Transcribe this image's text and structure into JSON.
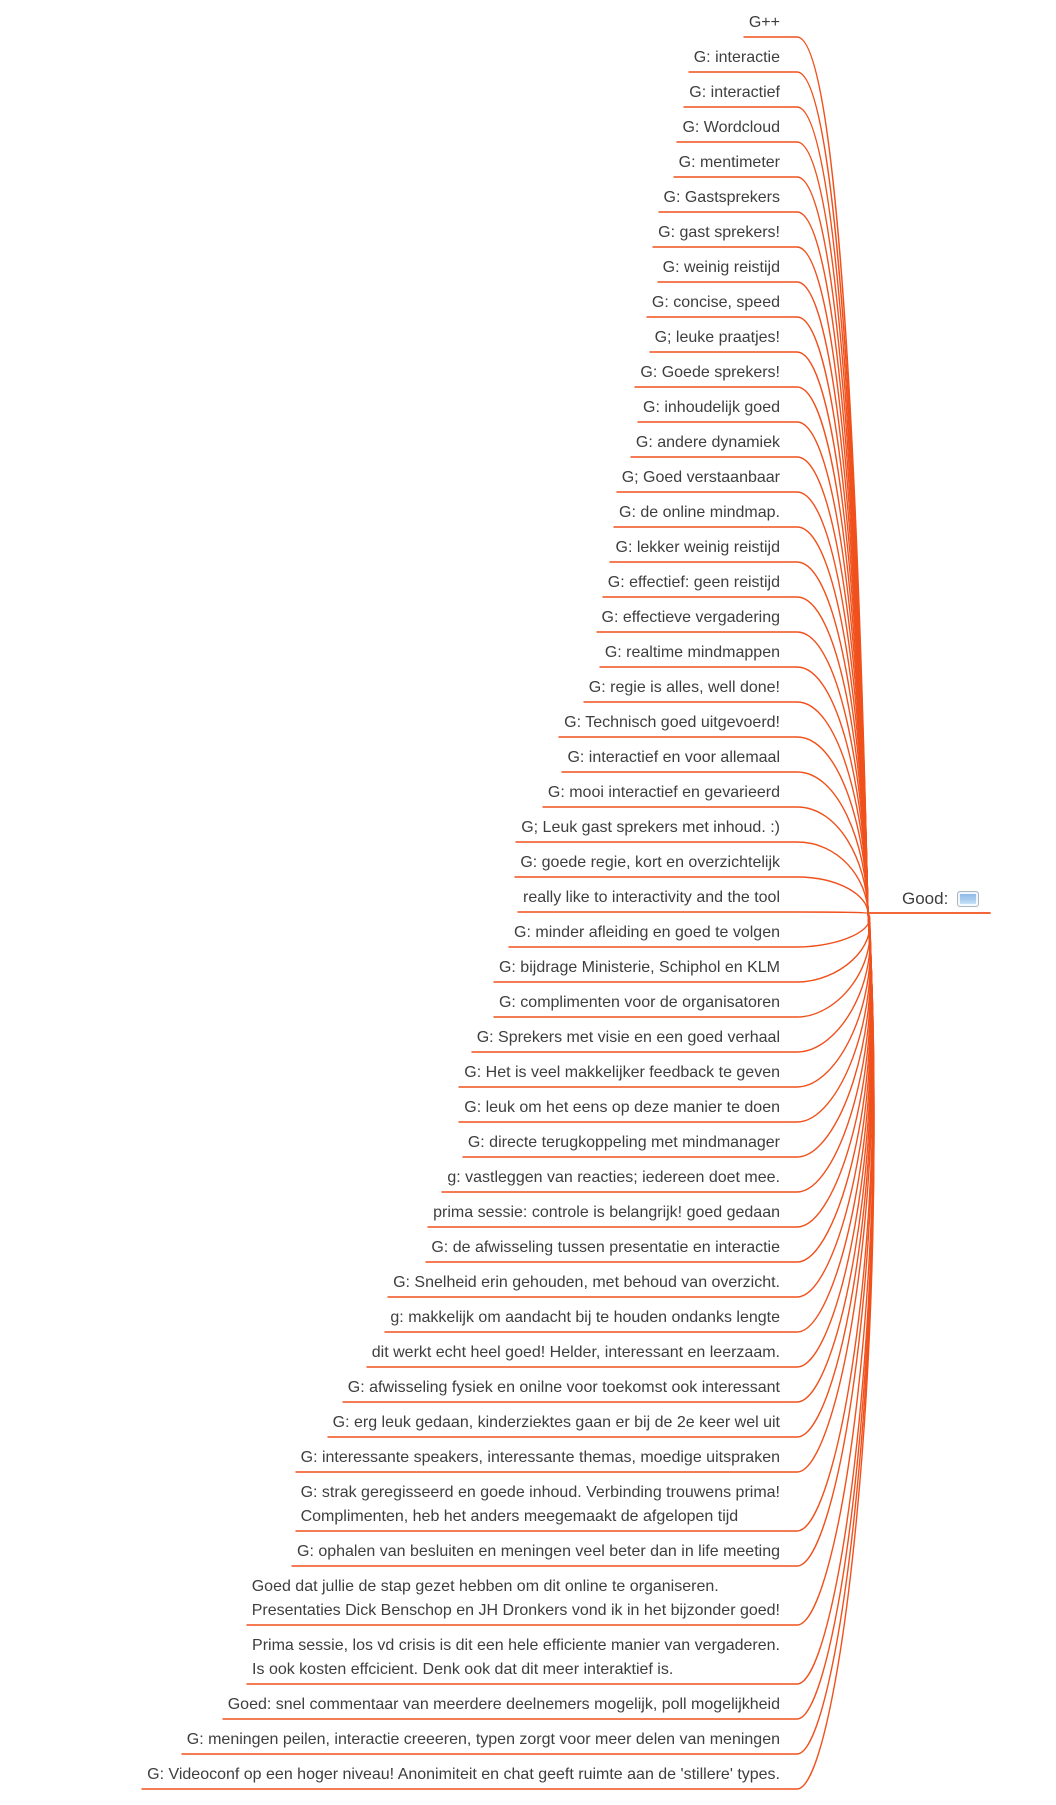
{
  "root": {
    "label": "Good:",
    "icon": "notes-icon"
  },
  "colors": {
    "branch": "#F0511C",
    "text": "#3E3E3E",
    "note_icon_top": "#86b4e3",
    "note_icon_bottom": "#d6ebfa"
  },
  "topics": [
    {
      "lines": [
        "G++"
      ]
    },
    {
      "lines": [
        "G: interactie"
      ]
    },
    {
      "lines": [
        "G: interactief"
      ]
    },
    {
      "lines": [
        "G: Wordcloud"
      ]
    },
    {
      "lines": [
        "G: mentimeter"
      ]
    },
    {
      "lines": [
        "G: Gastsprekers"
      ]
    },
    {
      "lines": [
        "G: gast sprekers!"
      ]
    },
    {
      "lines": [
        "G: weinig reistijd"
      ]
    },
    {
      "lines": [
        "G: concise, speed"
      ]
    },
    {
      "lines": [
        "G; leuke praatjes!"
      ]
    },
    {
      "lines": [
        "G: Goede sprekers!"
      ]
    },
    {
      "lines": [
        "G: inhoudelijk goed"
      ]
    },
    {
      "lines": [
        "G: andere dynamiek"
      ]
    },
    {
      "lines": [
        "G; Goed verstaanbaar"
      ]
    },
    {
      "lines": [
        "G: de online mindmap."
      ]
    },
    {
      "lines": [
        "G: lekker weinig reistijd"
      ]
    },
    {
      "lines": [
        "G: effectief: geen reistijd"
      ]
    },
    {
      "lines": [
        "G: effectieve vergadering"
      ]
    },
    {
      "lines": [
        "G: realtime mindmappen"
      ]
    },
    {
      "lines": [
        "G: regie is alles, well done!"
      ]
    },
    {
      "lines": [
        "G: Technisch goed uitgevoerd!"
      ]
    },
    {
      "lines": [
        "G: interactief en voor allemaal"
      ]
    },
    {
      "lines": [
        "G: mooi interactief en gevarieerd"
      ]
    },
    {
      "lines": [
        "G; Leuk gast sprekers met inhoud. :)"
      ]
    },
    {
      "lines": [
        "G: goede regie, kort en overzichtelijk"
      ]
    },
    {
      "lines": [
        "really like to interactivity and the tool"
      ]
    },
    {
      "lines": [
        "G: minder afleiding en goed te volgen"
      ]
    },
    {
      "lines": [
        "G: bijdrage Ministerie, Schiphol en KLM"
      ]
    },
    {
      "lines": [
        "G: complimenten voor de organisatoren"
      ]
    },
    {
      "lines": [
        "G: Sprekers met visie en een goed verhaal"
      ]
    },
    {
      "lines": [
        "G: Het is veel makkelijker feedback te geven"
      ]
    },
    {
      "lines": [
        "G: leuk om het eens op deze manier te doen"
      ]
    },
    {
      "lines": [
        "G: directe terugkoppeling met mindmanager"
      ]
    },
    {
      "lines": [
        "g: vastleggen van reacties; iedereen doet mee."
      ]
    },
    {
      "lines": [
        "prima sessie: controle is belangrijk! goed gedaan"
      ]
    },
    {
      "lines": [
        "G: de afwisseling tussen presentatie en interactie"
      ]
    },
    {
      "lines": [
        "G: Snelheid erin gehouden, met behoud van overzicht."
      ]
    },
    {
      "lines": [
        "g: makkelijk om aandacht bij te houden ondanks lengte"
      ]
    },
    {
      "lines": [
        "dit werkt echt heel goed! Helder, interessant en leerzaam."
      ]
    },
    {
      "lines": [
        "G: afwisseling fysiek en onilne voor toekomst ook interessant"
      ]
    },
    {
      "lines": [
        "G: erg leuk gedaan, kinderziektes gaan er bij de 2e keer wel uit"
      ]
    },
    {
      "lines": [
        "G: interessante speakers, interessante themas, moedige uitspraken"
      ]
    },
    {
      "lines": [
        "G: strak geregisseerd en goede inhoud. Verbinding trouwens prima!",
        "Complimenten, heb het anders meegemaakt de afgelopen tijd"
      ]
    },
    {
      "lines": [
        "G: ophalen van besluiten en meningen veel beter dan in life meeting"
      ]
    },
    {
      "lines": [
        "Goed dat jullie de stap gezet hebben om dit online te organiseren.",
        "Presentaties Dick Benschop en JH Dronkers vond ik in het bijzonder goed!"
      ]
    },
    {
      "lines": [
        "Prima sessie, los vd crisis is dit een hele efficiente manier van vergaderen.",
        "Is ook kosten effcicient. Denk ook dat dit meer interaktief is."
      ]
    },
    {
      "lines": [
        "Goed: snel commentaar van meerdere deelnemers mogelijk, poll mogelijkheid"
      ]
    },
    {
      "lines": [
        "G: meningen peilen, interactie creeeren, typen zorgt voor meer delen van meningen"
      ]
    },
    {
      "lines": [
        "G: Videoconf op een hoger niveau! Anonimiteit en chat geeft ruimte aan de 'stillere' types."
      ]
    }
  ]
}
